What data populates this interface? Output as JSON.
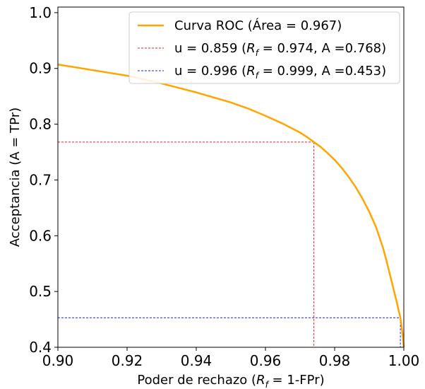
{
  "chart_data": {
    "type": "line",
    "title": "",
    "xlabel_parts": {
      "before": "Poder de rechazo (",
      "var": "R",
      "sub": "f",
      "after": " = 1-FPr)"
    },
    "ylabel": "Acceptancia (A = TPr)",
    "xlim": [
      0.9,
      1.0
    ],
    "ylim": [
      0.4,
      1.01
    ],
    "x_ticks": [
      0.9,
      0.92,
      0.94,
      0.96,
      0.98,
      1.0
    ],
    "x_tick_labels": [
      "0.90",
      "0.92",
      "0.94",
      "0.96",
      "0.98",
      "1.00"
    ],
    "y_ticks": [
      0.4,
      0.5,
      0.6,
      0.7,
      0.8,
      0.9,
      1.0
    ],
    "y_tick_labels": [
      "0.4",
      "0.5",
      "0.6",
      "0.7",
      "0.8",
      "0.9",
      "1.0"
    ],
    "grid": false,
    "legend_position": "top-right",
    "series": [
      {
        "name": "Curva ROC (Área = 0.967)",
        "color": "#ffa500",
        "style": "solid",
        "x": [
          0.9,
          0.905,
          0.91,
          0.915,
          0.92,
          0.925,
          0.93,
          0.935,
          0.94,
          0.945,
          0.95,
          0.955,
          0.96,
          0.965,
          0.97,
          0.972,
          0.974,
          0.976,
          0.978,
          0.98,
          0.982,
          0.984,
          0.986,
          0.988,
          0.99,
          0.992,
          0.994,
          0.995,
          0.996,
          0.997,
          0.998,
          0.9985,
          0.999,
          0.9993,
          0.9996,
          0.9998,
          1.0
        ],
        "y": [
          0.907,
          0.902,
          0.897,
          0.892,
          0.887,
          0.88,
          0.873,
          0.865,
          0.857,
          0.848,
          0.839,
          0.828,
          0.815,
          0.801,
          0.785,
          0.777,
          0.768,
          0.759,
          0.748,
          0.736,
          0.722,
          0.706,
          0.688,
          0.667,
          0.643,
          0.615,
          0.578,
          0.555,
          0.53,
          0.505,
          0.48,
          0.466,
          0.453,
          0.44,
          0.425,
          0.412,
          0.4
        ]
      },
      {
        "name": "u = 0.859",
        "color": "#d62728",
        "style": "dashed",
        "rf": 0.974,
        "a": 0.768
      },
      {
        "name": "u = 0.996",
        "color": "#2222dd",
        "style": "dashed",
        "rf": 0.999,
        "a": 0.453
      }
    ],
    "legend": [
      {
        "label": "Curva ROC (Área = 0.967)"
      },
      {
        "prefix": "u = 0.859 (",
        "var": "R",
        "sub": "f",
        "suffix": " = 0.974, A =0.768)"
      },
      {
        "prefix": "u = 0.996 (",
        "var": "R",
        "sub": "f",
        "suffix": " = 0.999, A =0.453)"
      }
    ]
  }
}
